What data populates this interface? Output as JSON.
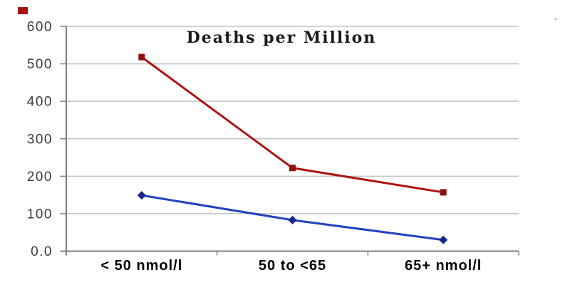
{
  "chart_data": {
    "type": "line",
    "title": "Deaths per Million",
    "categories": [
      "< 50 nmol/l",
      "50 to <65",
      "65+ nmol/l"
    ],
    "series": [
      {
        "name": "red_series",
        "marker": "square",
        "line_color": "#ad1414",
        "marker_color": "#8f0f0f",
        "values": [
          518,
          222,
          157
        ]
      },
      {
        "name": "blue_series",
        "marker": "diamond",
        "line_color": "#2343bd",
        "marker_color": "#16258f",
        "values": [
          149,
          83,
          30
        ]
      }
    ],
    "ylim": [
      0,
      600
    ],
    "ytick_labels": [
      "600",
      "500",
      "400",
      "300",
      "200",
      "100",
      "0.0"
    ],
    "ytick_values": [
      600,
      500,
      400,
      300,
      200,
      100,
      0
    ],
    "xlabel": "",
    "ylabel": "",
    "grid": "horizontal",
    "legend": "none"
  },
  "colors": {
    "gridline": "#c3c3c3",
    "axis": "#7f7f7f",
    "ytick_label": "#3c3c3c",
    "xtick_label": "#000000",
    "title": "#1a1a1a",
    "stray_red_square": "#a51212",
    "stray_pink_dot": "#e9bcbc"
  }
}
